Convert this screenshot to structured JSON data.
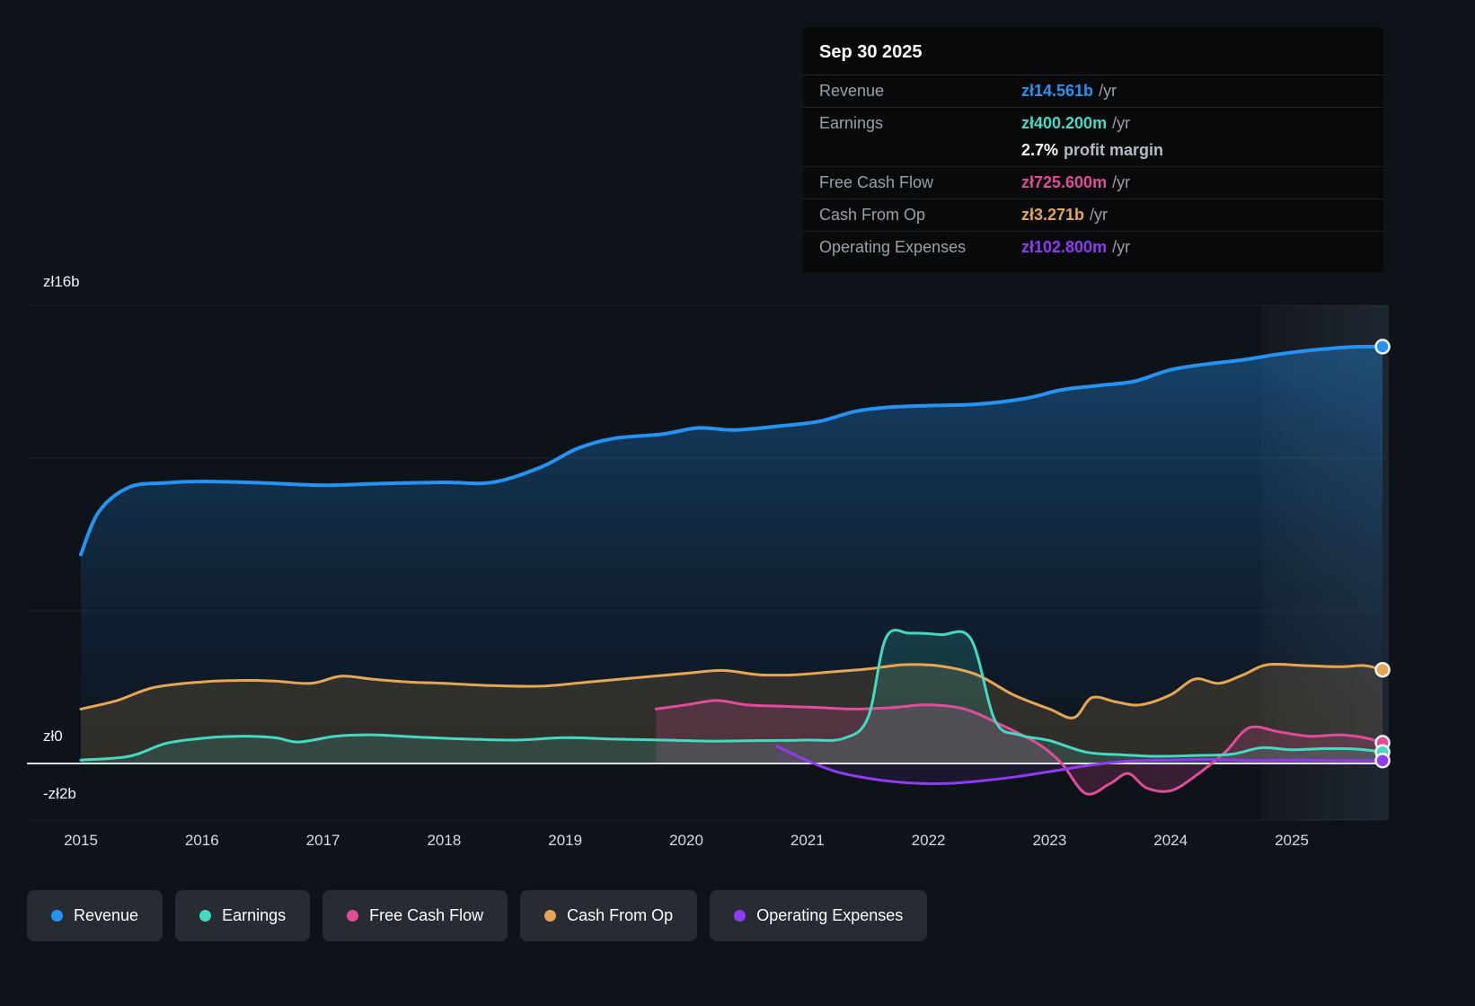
{
  "colors": {
    "revenue": "#2493f2",
    "earnings": "#45d9c2",
    "fcf": "#e04d99",
    "cashop": "#e5a655",
    "opex": "#8f3bf2",
    "white": "#ffffff",
    "background": "#0e1319",
    "tooltip_bg": "#08090b",
    "zero_line": "#e7ebee",
    "gridline": "rgba(255,255,255,0.07)"
  },
  "tooltip": {
    "date": "Sep 30 2025",
    "rows": [
      {
        "label": "Revenue",
        "value": "zł14.561b",
        "suffix": "/yr",
        "color_key": "revenue",
        "sub": false
      },
      {
        "label": "Earnings",
        "value": "zł400.200m",
        "suffix": "/yr",
        "color_key": "earnings",
        "sub": false
      },
      {
        "label": "",
        "value": "2.7%",
        "suffix": "profit margin",
        "color_key": "white",
        "sub": true
      },
      {
        "label": "Free Cash Flow",
        "value": "zł725.600m",
        "suffix": "/yr",
        "color_key": "fcf",
        "sub": false
      },
      {
        "label": "Cash From Op",
        "value": "zł3.271b",
        "suffix": "/yr",
        "color_key": "cashop",
        "sub": false
      },
      {
        "label": "Operating Expenses",
        "value": "zł102.800m",
        "suffix": "/yr",
        "color_key": "opex",
        "sub": false
      }
    ]
  },
  "y_axis": {
    "labels": [
      "zł16b",
      "zł0",
      "-zł2b"
    ]
  },
  "x_axis": {
    "years": [
      "2015",
      "2016",
      "2017",
      "2018",
      "2019",
      "2020",
      "2021",
      "2022",
      "2023",
      "2024",
      "2025"
    ]
  },
  "legend": [
    {
      "label": "Revenue",
      "color_key": "revenue"
    },
    {
      "label": "Earnings",
      "color_key": "earnings"
    },
    {
      "label": "Free Cash Flow",
      "color_key": "fcf"
    },
    {
      "label": "Cash From Op",
      "color_key": "cashop"
    },
    {
      "label": "Operating Expenses",
      "color_key": "opex"
    }
  ],
  "chart_data": {
    "type": "line",
    "title": "Company financial history (PLN)",
    "x_unit": "year",
    "y_unit": "PLN billions",
    "xlim": [
      2014.55,
      2025.8
    ],
    "ylim": [
      -2,
      16
    ],
    "grid": "horizontal",
    "gridline_values": [
      16,
      10.67,
      5.33,
      0,
      -2
    ],
    "legend_position": "bottom",
    "highlight_band_x": [
      2024.75,
      2025.8
    ],
    "series": [
      {
        "name": "Revenue",
        "color_key": "revenue",
        "fill": "gradient",
        "width": 4,
        "points": [
          [
            2015.0,
            7.3
          ],
          [
            2015.15,
            8.8
          ],
          [
            2015.4,
            9.65
          ],
          [
            2015.7,
            9.8
          ],
          [
            2016.0,
            9.85
          ],
          [
            2016.5,
            9.8
          ],
          [
            2017.0,
            9.72
          ],
          [
            2017.5,
            9.78
          ],
          [
            2018.0,
            9.82
          ],
          [
            2018.4,
            9.82
          ],
          [
            2018.8,
            10.35
          ],
          [
            2019.1,
            11.0
          ],
          [
            2019.4,
            11.35
          ],
          [
            2019.8,
            11.5
          ],
          [
            2020.1,
            11.72
          ],
          [
            2020.4,
            11.65
          ],
          [
            2020.8,
            11.8
          ],
          [
            2021.1,
            11.95
          ],
          [
            2021.4,
            12.3
          ],
          [
            2021.7,
            12.45
          ],
          [
            2022.0,
            12.5
          ],
          [
            2022.4,
            12.55
          ],
          [
            2022.8,
            12.75
          ],
          [
            2023.1,
            13.05
          ],
          [
            2023.4,
            13.2
          ],
          [
            2023.7,
            13.35
          ],
          [
            2024.0,
            13.75
          ],
          [
            2024.3,
            13.95
          ],
          [
            2024.6,
            14.1
          ],
          [
            2024.9,
            14.3
          ],
          [
            2025.2,
            14.45
          ],
          [
            2025.5,
            14.55
          ],
          [
            2025.75,
            14.561
          ]
        ]
      },
      {
        "name": "Cash From Op",
        "color_key": "cashop",
        "fill": 0.16,
        "width": 3,
        "points": [
          [
            2015.0,
            1.9
          ],
          [
            2015.3,
            2.2
          ],
          [
            2015.6,
            2.65
          ],
          [
            2016.0,
            2.85
          ],
          [
            2016.3,
            2.9
          ],
          [
            2016.6,
            2.88
          ],
          [
            2016.9,
            2.8
          ],
          [
            2017.15,
            3.05
          ],
          [
            2017.4,
            2.95
          ],
          [
            2017.7,
            2.85
          ],
          [
            2018.0,
            2.8
          ],
          [
            2018.4,
            2.72
          ],
          [
            2018.8,
            2.7
          ],
          [
            2019.2,
            2.85
          ],
          [
            2019.6,
            3.0
          ],
          [
            2020.0,
            3.15
          ],
          [
            2020.3,
            3.25
          ],
          [
            2020.6,
            3.1
          ],
          [
            2020.9,
            3.1
          ],
          [
            2021.2,
            3.2
          ],
          [
            2021.5,
            3.3
          ],
          [
            2021.8,
            3.45
          ],
          [
            2022.1,
            3.4
          ],
          [
            2022.4,
            3.1
          ],
          [
            2022.7,
            2.4
          ],
          [
            2023.0,
            1.9
          ],
          [
            2023.2,
            1.6
          ],
          [
            2023.35,
            2.3
          ],
          [
            2023.55,
            2.15
          ],
          [
            2023.75,
            2.05
          ],
          [
            2024.0,
            2.4
          ],
          [
            2024.2,
            2.95
          ],
          [
            2024.4,
            2.8
          ],
          [
            2024.6,
            3.1
          ],
          [
            2024.8,
            3.45
          ],
          [
            2025.1,
            3.42
          ],
          [
            2025.4,
            3.38
          ],
          [
            2025.6,
            3.42
          ],
          [
            2025.75,
            3.271
          ]
        ]
      },
      {
        "name": "Free Cash Flow",
        "color_key": "fcf",
        "fill": 0.2,
        "width": 3,
        "points": [
          [
            2019.75,
            1.9
          ],
          [
            2020.0,
            2.05
          ],
          [
            2020.25,
            2.2
          ],
          [
            2020.5,
            2.05
          ],
          [
            2020.8,
            2.0
          ],
          [
            2021.1,
            1.95
          ],
          [
            2021.4,
            1.9
          ],
          [
            2021.7,
            1.95
          ],
          [
            2022.0,
            2.05
          ],
          [
            2022.3,
            1.9
          ],
          [
            2022.6,
            1.35
          ],
          [
            2022.9,
            0.7
          ],
          [
            2023.1,
            0.0
          ],
          [
            2023.3,
            -1.05
          ],
          [
            2023.5,
            -0.7
          ],
          [
            2023.65,
            -0.35
          ],
          [
            2023.8,
            -0.85
          ],
          [
            2024.0,
            -0.95
          ],
          [
            2024.2,
            -0.45
          ],
          [
            2024.45,
            0.4
          ],
          [
            2024.65,
            1.25
          ],
          [
            2024.9,
            1.1
          ],
          [
            2025.15,
            0.95
          ],
          [
            2025.4,
            1.0
          ],
          [
            2025.6,
            0.9
          ],
          [
            2025.75,
            0.726
          ]
        ]
      },
      {
        "name": "Earnings",
        "color_key": "earnings",
        "fill": 0.16,
        "width": 3,
        "points": [
          [
            2015.0,
            0.12
          ],
          [
            2015.4,
            0.25
          ],
          [
            2015.7,
            0.7
          ],
          [
            2016.0,
            0.88
          ],
          [
            2016.3,
            0.95
          ],
          [
            2016.6,
            0.9
          ],
          [
            2016.8,
            0.75
          ],
          [
            2017.1,
            0.95
          ],
          [
            2017.4,
            1.0
          ],
          [
            2017.8,
            0.92
          ],
          [
            2018.2,
            0.85
          ],
          [
            2018.6,
            0.82
          ],
          [
            2019.0,
            0.9
          ],
          [
            2019.4,
            0.85
          ],
          [
            2019.8,
            0.82
          ],
          [
            2020.2,
            0.78
          ],
          [
            2020.6,
            0.8
          ],
          [
            2021.0,
            0.82
          ],
          [
            2021.3,
            0.88
          ],
          [
            2021.5,
            1.6
          ],
          [
            2021.65,
            4.4
          ],
          [
            2021.85,
            4.55
          ],
          [
            2022.1,
            4.5
          ],
          [
            2022.35,
            4.35
          ],
          [
            2022.55,
            1.5
          ],
          [
            2022.75,
            1.0
          ],
          [
            2023.0,
            0.8
          ],
          [
            2023.3,
            0.4
          ],
          [
            2023.6,
            0.3
          ],
          [
            2023.9,
            0.25
          ],
          [
            2024.2,
            0.28
          ],
          [
            2024.5,
            0.32
          ],
          [
            2024.75,
            0.55
          ],
          [
            2025.0,
            0.48
          ],
          [
            2025.3,
            0.52
          ],
          [
            2025.55,
            0.5
          ],
          [
            2025.75,
            0.4
          ]
        ]
      },
      {
        "name": "Operating Expenses",
        "color_key": "opex",
        "fill": 0.1,
        "width": 3,
        "points": [
          [
            2020.75,
            0.6
          ],
          [
            2021.0,
            0.1
          ],
          [
            2021.25,
            -0.3
          ],
          [
            2021.55,
            -0.55
          ],
          [
            2021.85,
            -0.68
          ],
          [
            2022.15,
            -0.7
          ],
          [
            2022.45,
            -0.6
          ],
          [
            2022.75,
            -0.45
          ],
          [
            2023.05,
            -0.25
          ],
          [
            2023.35,
            -0.05
          ],
          [
            2023.65,
            0.08
          ],
          [
            2024.0,
            0.12
          ],
          [
            2024.35,
            0.14
          ],
          [
            2024.7,
            0.1
          ],
          [
            2025.05,
            0.12
          ],
          [
            2025.4,
            0.1
          ],
          [
            2025.75,
            0.103
          ]
        ]
      }
    ]
  }
}
